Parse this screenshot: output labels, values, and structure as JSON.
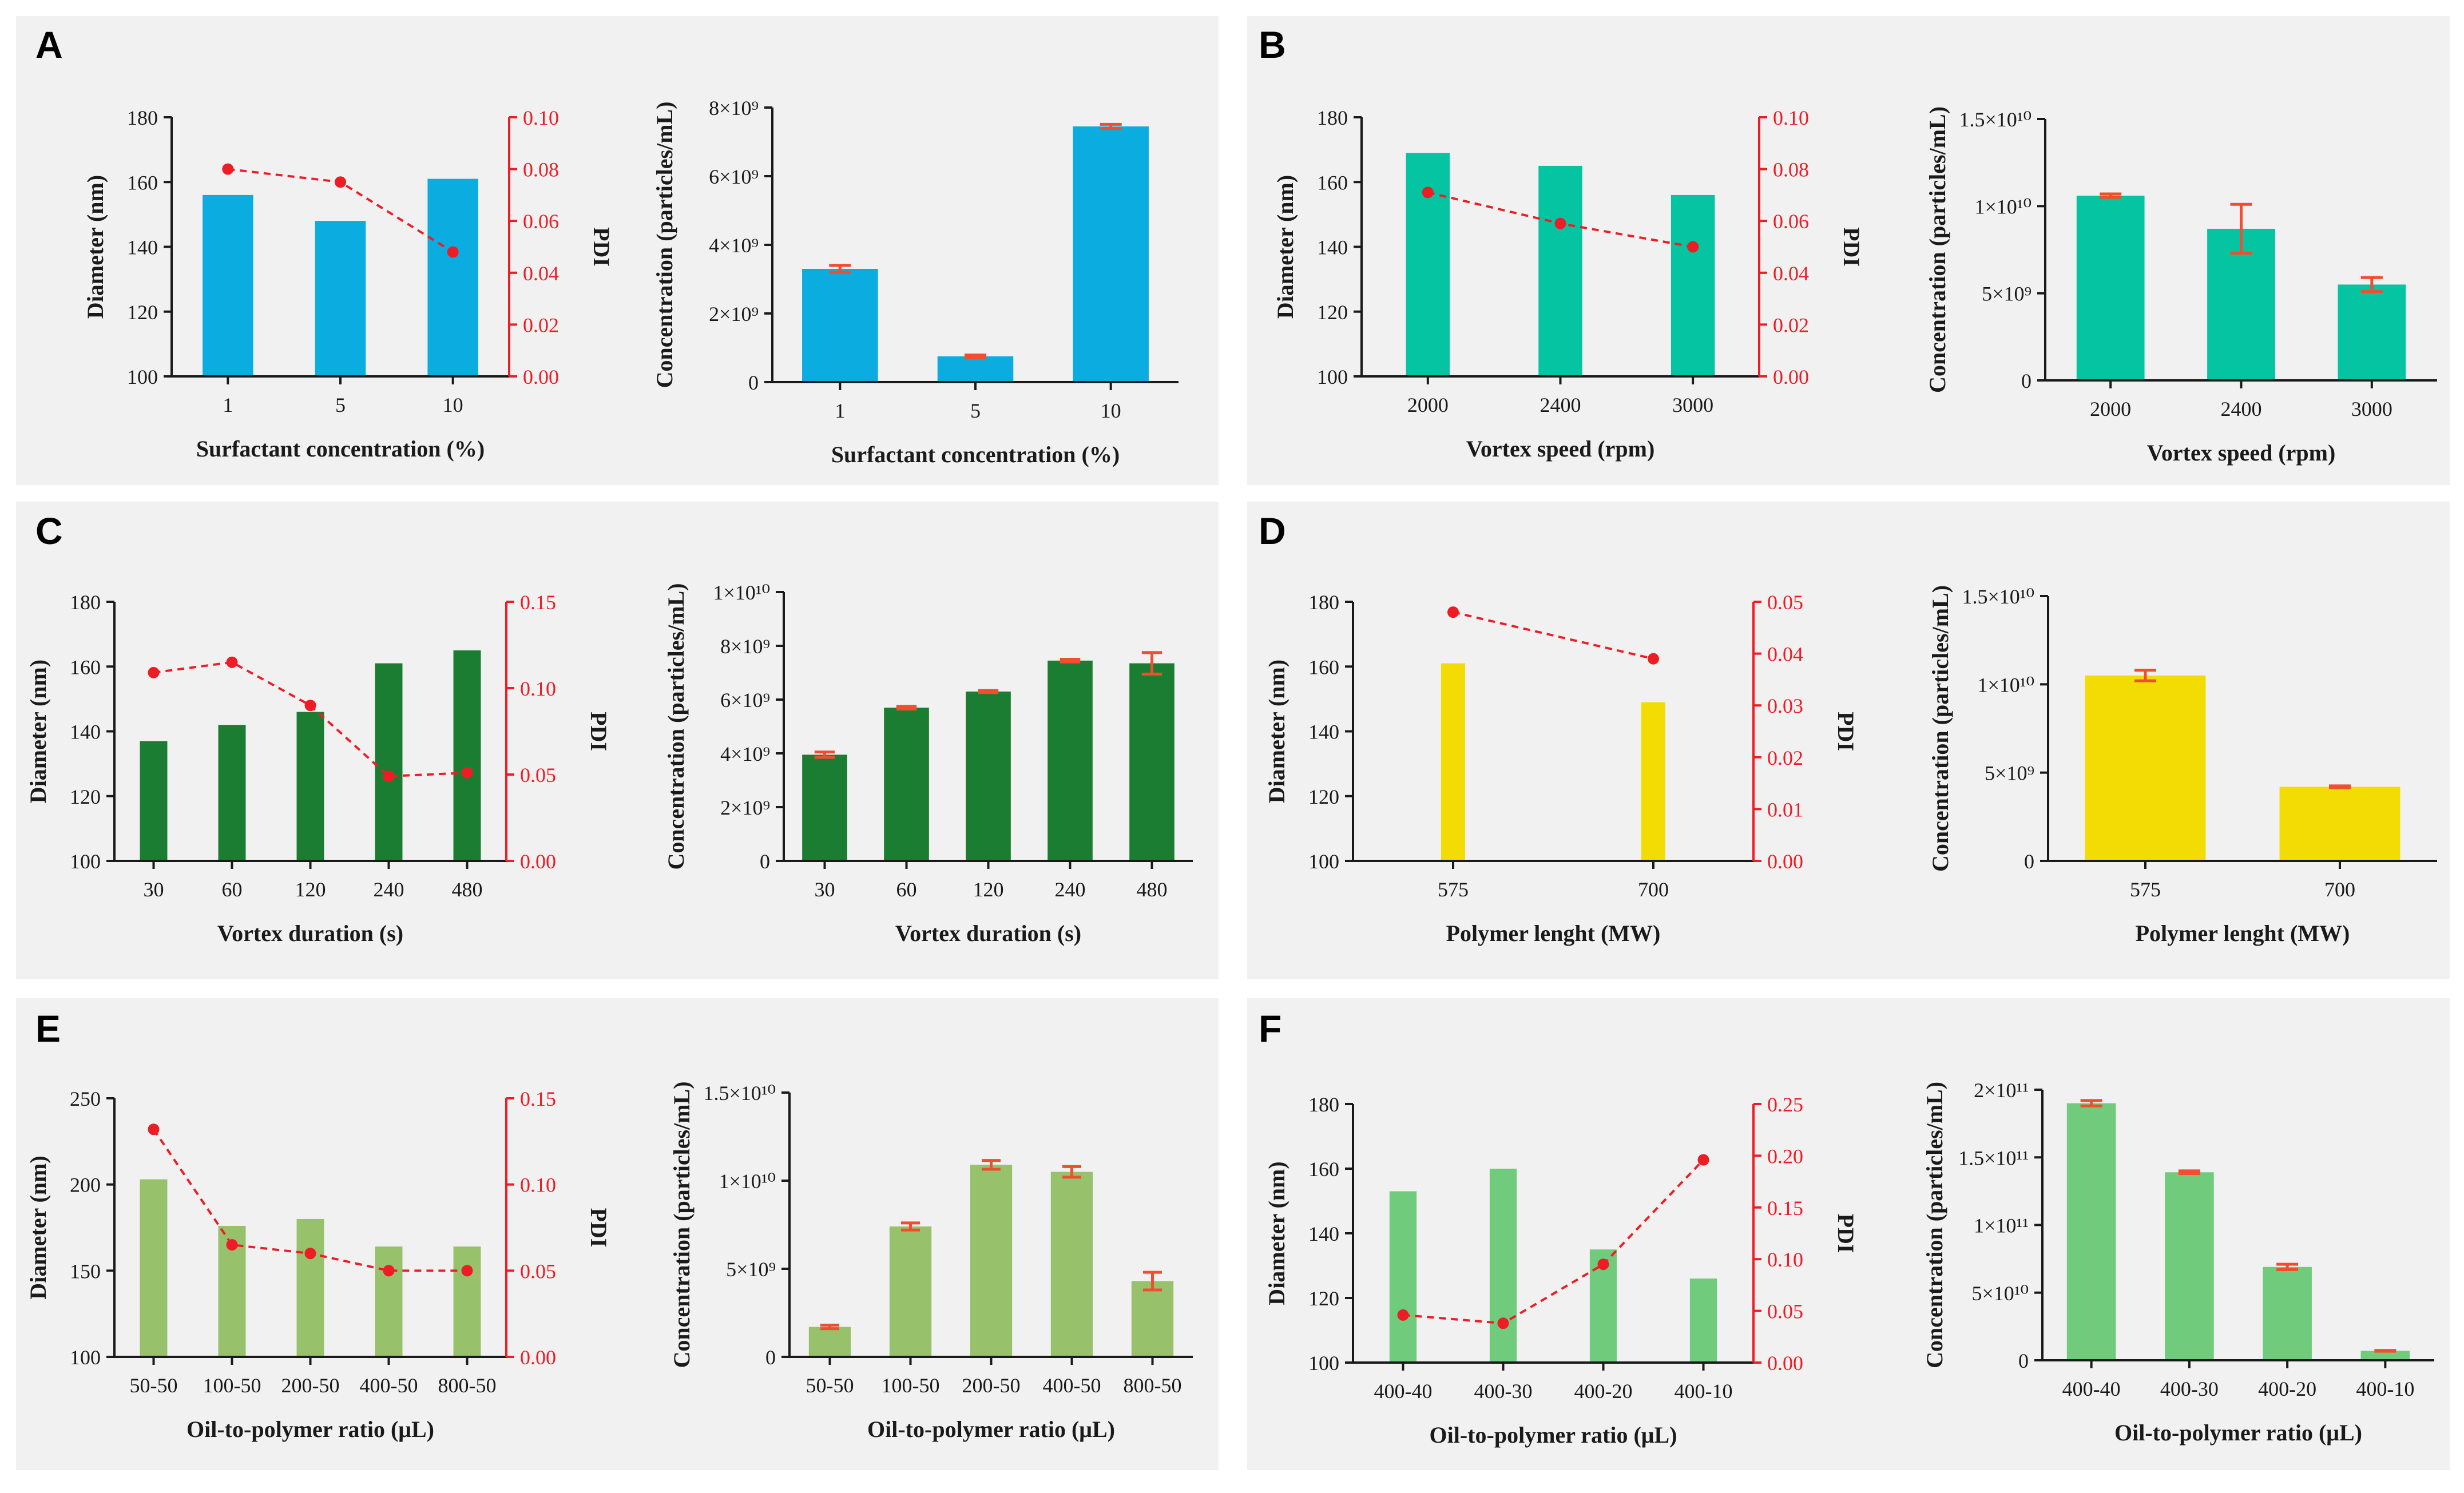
{
  "colors": {
    "blue": "#0bace0",
    "teal": "#05c4a1",
    "dark_green": "#1b7d32",
    "yellow": "#f3db04",
    "olive_green": "#98c16b",
    "light_green": "#70cc7c",
    "pdi_red": "#ee1c25",
    "error_red": "#f04e2f",
    "panel_bg": "#f1f1f1"
  },
  "panels": [
    {
      "label": "A"
    },
    {
      "label": "B"
    },
    {
      "label": "C"
    },
    {
      "label": "D"
    },
    {
      "label": "E"
    },
    {
      "label": "F"
    }
  ],
  "chart_data": [
    {
      "id": "A-diameter",
      "type": "bar+line",
      "panel": "A",
      "color": "blue",
      "categories": [
        "1",
        "5",
        "10"
      ],
      "series": [
        {
          "name": "Diameter",
          "values": [
            156,
            148,
            161
          ]
        },
        {
          "name": "PDI",
          "axis": "right",
          "values": [
            0.08,
            0.075,
            0.048
          ]
        }
      ],
      "xlabel": "Surfactant concentration (%)",
      "ylabel": "Diameter (nm)",
      "y2label": "PDI",
      "ylim": [
        100,
        180
      ],
      "yticks": [
        "100",
        "120",
        "140",
        "160",
        "180"
      ],
      "y2lim": [
        0,
        0.1
      ],
      "y2ticks": [
        "0.00",
        "0.02",
        "0.04",
        "0.06",
        "0.08",
        "0.10"
      ]
    },
    {
      "id": "A-concentration",
      "type": "bar",
      "panel": "A",
      "color": "blue",
      "categories": [
        "1",
        "5",
        "10"
      ],
      "values": [
        3300000000.0,
        750000000.0,
        7450000000.0
      ],
      "errors": [
        100000000.0,
        40000000.0,
        60000000.0
      ],
      "xlabel": "Surfactant concentration (%)",
      "ylabel": "Concentration (particles/mL)",
      "ylim": [
        0,
        8000000000.0
      ],
      "yticks": [
        "0",
        "2×10⁹",
        "4×10⁹",
        "6×10⁹",
        "8×10⁹"
      ]
    },
    {
      "id": "B-diameter",
      "type": "bar+line",
      "panel": "B",
      "color": "teal",
      "categories": [
        "2000",
        "2400",
        "3000"
      ],
      "series": [
        {
          "name": "Diameter",
          "values": [
            169,
            165,
            156
          ]
        },
        {
          "name": "PDI",
          "axis": "right",
          "values": [
            0.071,
            0.059,
            0.05
          ]
        }
      ],
      "xlabel": "Vortex speed (rpm)",
      "ylabel": "Diameter (nm)",
      "y2label": "PDI",
      "ylim": [
        100,
        180
      ],
      "yticks": [
        "100",
        "120",
        "140",
        "160",
        "180"
      ],
      "y2lim": [
        0,
        0.1
      ],
      "y2ticks": [
        "0.00",
        "0.02",
        "0.04",
        "0.06",
        "0.08",
        "0.10"
      ]
    },
    {
      "id": "B-concentration",
      "type": "bar",
      "panel": "B",
      "color": "teal",
      "categories": [
        "2000",
        "2400",
        "3000"
      ],
      "values": [
        10600000000.0,
        8700000000.0,
        5500000000.0
      ],
      "errors": [
        100000000.0,
        1400000000.0,
        400000000.0
      ],
      "xlabel": "Vortex speed (rpm)",
      "ylabel": "Concentration (particles/mL)",
      "ylim": [
        0,
        15000000000.0
      ],
      "yticks": [
        "0",
        "5×10⁹",
        "1×10¹⁰",
        "1.5×10¹⁰"
      ]
    },
    {
      "id": "C-diameter",
      "type": "bar+line",
      "panel": "C",
      "color": "dark_green",
      "categories": [
        "30",
        "60",
        "120",
        "240",
        "480"
      ],
      "series": [
        {
          "name": "Diameter",
          "values": [
            137,
            142,
            146,
            161,
            165
          ]
        },
        {
          "name": "PDI",
          "axis": "right",
          "values": [
            0.109,
            0.115,
            0.09,
            0.049,
            0.051
          ]
        }
      ],
      "xlabel": "Vortex duration (s)",
      "ylabel": "Diameter (nm)",
      "y2label": "PDI",
      "ylim": [
        100,
        180
      ],
      "yticks": [
        "100",
        "120",
        "140",
        "160",
        "180"
      ],
      "y2lim": [
        0,
        0.15
      ],
      "y2ticks": [
        "0.00",
        "0.05",
        "0.10",
        "0.15"
      ]
    },
    {
      "id": "C-concentration",
      "type": "bar",
      "panel": "C",
      "color": "dark_green",
      "categories": [
        "30",
        "60",
        "120",
        "240",
        "480"
      ],
      "values": [
        3950000000.0,
        5700000000.0,
        6300000000.0,
        7450000000.0,
        7350000000.0
      ],
      "errors": [
        100000000.0,
        50000000.0,
        40000000.0,
        50000000.0,
        400000000.0
      ],
      "xlabel": "Vortex duration (s)",
      "ylabel": "Concentration (particles/mL)",
      "ylim": [
        0,
        10000000000.0
      ],
      "yticks": [
        "0",
        "2×10⁹",
        "4×10⁹",
        "6×10⁹",
        "8×10⁹",
        "1×10¹⁰"
      ]
    },
    {
      "id": "D-diameter",
      "type": "bar+line",
      "panel": "D",
      "color": "yellow",
      "categories": [
        "575",
        "700"
      ],
      "series": [
        {
          "name": "Diameter",
          "values": [
            161,
            149
          ]
        },
        {
          "name": "PDI",
          "axis": "right",
          "values": [
            0.048,
            0.039
          ]
        }
      ],
      "xlabel": "Polymer lenght (MW)",
      "ylabel": "Diameter (nm)",
      "y2label": "PDI",
      "ylim": [
        100,
        180
      ],
      "yticks": [
        "100",
        "120",
        "140",
        "160",
        "180"
      ],
      "y2lim": [
        0,
        0.05
      ],
      "y2ticks": [
        "0.00",
        "0.01",
        "0.02",
        "0.03",
        "0.04",
        "0.05"
      ]
    },
    {
      "id": "D-concentration",
      "type": "bar",
      "panel": "D",
      "color": "yellow",
      "categories": [
        "575",
        "700"
      ],
      "values": [
        10500000000.0,
        4200000000.0
      ],
      "errors": [
        300000000.0,
        50000000.0
      ],
      "xlabel": "Polymer lenght (MW)",
      "ylabel": "Concentration (particles/mL)",
      "ylim": [
        0,
        15000000000.0
      ],
      "yticks": [
        "0",
        "5×10⁹",
        "1×10¹⁰",
        "1.5×10¹⁰"
      ]
    },
    {
      "id": "E-diameter",
      "type": "bar+line",
      "panel": "E",
      "color": "olive_green",
      "categories": [
        "50-50",
        "100-50",
        "200-50",
        "400-50",
        "800-50"
      ],
      "series": [
        {
          "name": "Diameter",
          "values": [
            203,
            176,
            180,
            164,
            164
          ]
        },
        {
          "name": "PDI",
          "axis": "right",
          "values": [
            0.132,
            0.065,
            0.06,
            0.05,
            0.05
          ]
        }
      ],
      "xlabel": "Oil-to-polymer ratio (μL)",
      "ylabel": "Diameter (nm)",
      "y2label": "PDI",
      "ylim": [
        100,
        250
      ],
      "yticks": [
        "100",
        "150",
        "200",
        "250"
      ],
      "y2lim": [
        0,
        0.15
      ],
      "y2ticks": [
        "0.00",
        "0.05",
        "0.10",
        "0.15"
      ]
    },
    {
      "id": "E-concentration",
      "type": "bar",
      "panel": "E",
      "color": "olive_green",
      "categories": [
        "50-50",
        "100-50",
        "200-50",
        "400-50",
        "800-50"
      ],
      "values": [
        1700000000.0,
        7400000000.0,
        10900000000.0,
        10500000000.0,
        4300000000.0
      ],
      "errors": [
        100000000.0,
        200000000.0,
        250000000.0,
        300000000.0,
        500000000.0
      ],
      "xlabel": "Oil-to-polymer ratio (μL)",
      "ylabel": "Concentration (particles/mL)",
      "ylim": [
        0,
        15000000000.0
      ],
      "yticks": [
        "0",
        "5×10⁹",
        "1×10¹⁰",
        "1.5×10¹⁰"
      ]
    },
    {
      "id": "F-diameter",
      "type": "bar+line",
      "panel": "F",
      "color": "light_green",
      "categories": [
        "400-40",
        "400-30",
        "400-20",
        "400-10"
      ],
      "series": [
        {
          "name": "Diameter",
          "values": [
            153,
            160,
            135,
            126
          ]
        },
        {
          "name": "PDI",
          "axis": "right",
          "values": [
            0.046,
            0.038,
            0.095,
            0.196
          ]
        }
      ],
      "xlabel": "Oil-to-polymer ratio (μL)",
      "ylabel": "Diameter (nm)",
      "y2label": "PDI",
      "ylim": [
        100,
        180
      ],
      "yticks": [
        "100",
        "120",
        "140",
        "160",
        "180"
      ],
      "y2lim": [
        0,
        0.25
      ],
      "y2ticks": [
        "0.00",
        "0.05",
        "0.10",
        "0.15",
        "0.20",
        "0.25"
      ]
    },
    {
      "id": "F-concentration",
      "type": "bar",
      "panel": "F",
      "color": "light_green",
      "categories": [
        "400-40",
        "400-30",
        "400-20",
        "400-10"
      ],
      "values": [
        190000000000.0,
        139000000000.0,
        69000000000.0,
        7000000000.0
      ],
      "errors": [
        2000000000.0,
        1000000000.0,
        2000000000.0,
        300000000.0
      ],
      "xlabel": "Oil-to-polymer ratio (μL)",
      "ylabel": "Concentration (particles/mL)",
      "ylim": [
        0,
        200000000000.0
      ],
      "yticks": [
        "0",
        "5×10¹⁰",
        "1×10¹¹",
        "1.5×10¹¹",
        "2×10¹¹"
      ]
    }
  ]
}
